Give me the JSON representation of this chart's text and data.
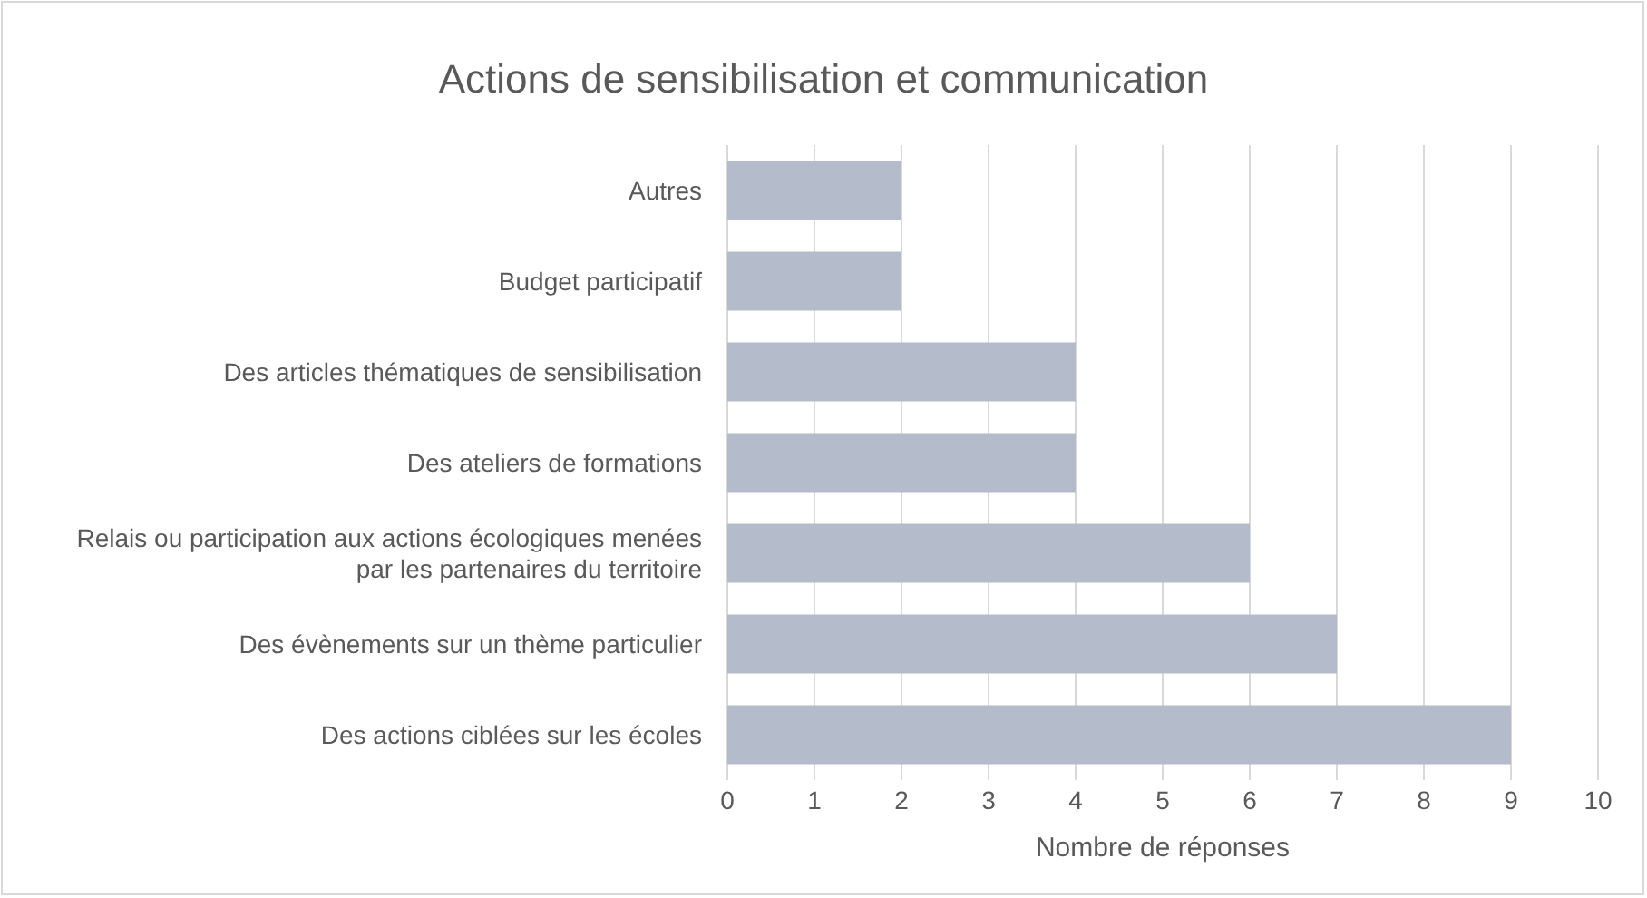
{
  "chart_data": {
    "type": "bar",
    "orientation": "horizontal",
    "title": "Actions de sensibilisation et communication",
    "xlabel": "Nombre de réponses",
    "categories": [
      "Autres",
      "Budget participatif",
      "Des articles thématiques de sensibilisation",
      "Des ateliers de formations",
      "Relais ou participation aux actions écologiques menées par les partenaires du territoire",
      "Des évènements sur un thème particulier",
      "Des actions ciblées sur les écoles"
    ],
    "values": [
      2,
      2,
      4,
      4,
      6,
      7,
      9
    ],
    "color": "#b4bccb",
    "xlim": [
      0,
      10
    ],
    "xticks": [
      0,
      1,
      2,
      3,
      4,
      5,
      6,
      7,
      8,
      9,
      10
    ],
    "grid": "x"
  }
}
